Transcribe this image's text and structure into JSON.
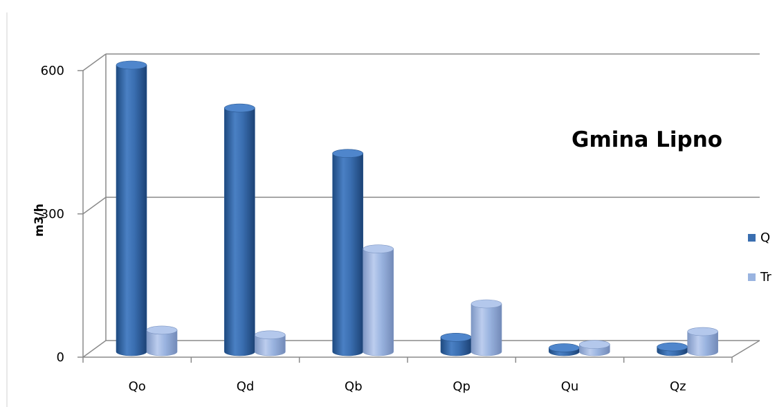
{
  "chart_data": {
    "type": "bar",
    "title": "Gmina Lipno",
    "xlabel": "",
    "ylabel": "m3/h",
    "categories": [
      "Qo",
      "Qd",
      "Qb",
      "Qp",
      "Qu",
      "Qz"
    ],
    "series": [
      {
        "name": "Q",
        "color": "#3a6eb0",
        "values": [
          600,
          510,
          415,
          30,
          8,
          10
        ]
      },
      {
        "name": "Tr",
        "color": "#9ab4e0",
        "values": [
          45,
          35,
          215,
          100,
          15,
          42
        ]
      }
    ],
    "ylim": [
      0,
      600
    ],
    "yticks": [
      {
        "value": 0,
        "label": "0"
      },
      {
        "value": 300,
        "label": "300"
      },
      {
        "value": 600,
        "label": "600"
      }
    ],
    "gridlines": true,
    "legend_position": "right",
    "style": "3d-cylinder"
  }
}
